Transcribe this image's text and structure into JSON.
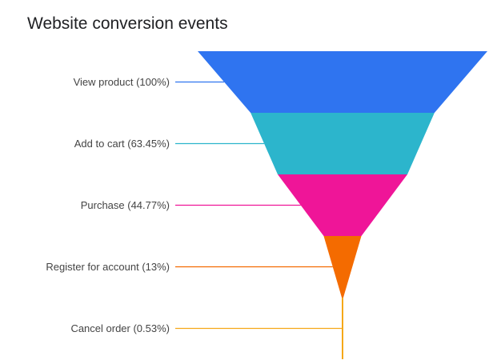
{
  "chart_data": {
    "type": "funnel",
    "title": "Website conversion events",
    "categories": [
      "View product (100%)",
      "Add to cart (63.45%)",
      "Purchase (44.77%)",
      "Register for account (13%)",
      "Cancel order (0.53%)"
    ],
    "stages": [
      {
        "name": "View product",
        "percent": 100,
        "color": "#2f74f0"
      },
      {
        "name": "Add to cart",
        "percent": 63.45,
        "color": "#2cb5cc"
      },
      {
        "name": "Purchase",
        "percent": 44.77,
        "color": "#ef1598"
      },
      {
        "name": "Register for account",
        "percent": 13,
        "color": "#f46b00"
      },
      {
        "name": "Cancel order",
        "percent": 0.53,
        "color": "#f5a818"
      }
    ]
  }
}
